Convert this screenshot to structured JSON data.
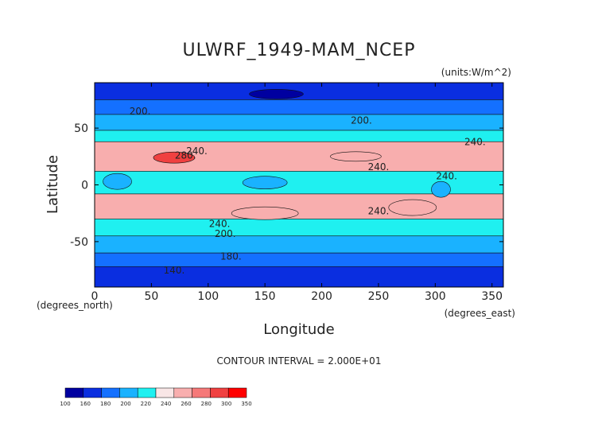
{
  "chart_data": {
    "type": "heatmap",
    "title": "ULWRF_1949-MAM_NCEP",
    "units": "(units:W/m^2)",
    "xlabel": "Longitude",
    "ylabel": "Latitude",
    "x_unit_note": "(degrees_east)",
    "y_unit_note": "(degrees_north)",
    "xlim": [
      0,
      360
    ],
    "ylim": [
      -90,
      90
    ],
    "x_ticks": [
      "0",
      "50",
      "100",
      "150",
      "200",
      "250",
      "300",
      "350"
    ],
    "y_ticks": [
      "50",
      "0",
      "-50"
    ],
    "contour_interval_text": "CONTOUR INTERVAL = 2.000E+01",
    "contour_labels": [
      "200.",
      "200.",
      "280.",
      "240.",
      "240.",
      "240.",
      "240.",
      "240.",
      "240.",
      "200.",
      "180.",
      "140."
    ],
    "latitude_bands": [
      {
        "lat_from": 90,
        "lat_to": 75,
        "value": 170
      },
      {
        "lat_from": 75,
        "lat_to": 62,
        "value": 190
      },
      {
        "lat_from": 62,
        "lat_to": 48,
        "value": 210
      },
      {
        "lat_from": 48,
        "lat_to": 38,
        "value": 230
      },
      {
        "lat_from": 38,
        "lat_to": 12,
        "value": 265
      },
      {
        "lat_from": 12,
        "lat_to": -8,
        "value": 235
      },
      {
        "lat_from": -8,
        "lat_to": -30,
        "value": 265
      },
      {
        "lat_from": -30,
        "lat_to": -45,
        "value": 230
      },
      {
        "lat_from": -45,
        "lat_to": -60,
        "value": 210
      },
      {
        "lat_from": -60,
        "lat_to": -72,
        "value": 190
      },
      {
        "lat_from": -72,
        "lat_to": -90,
        "value": 170
      }
    ],
    "features": [
      {
        "lon": 70,
        "lat": 24,
        "value": 305
      },
      {
        "lon": 20,
        "lat": 3,
        "value": 215
      },
      {
        "lon": 150,
        "lat": 2,
        "value": 215
      },
      {
        "lon": 305,
        "lat": -4,
        "value": 215
      },
      {
        "lon": 230,
        "lat": 25,
        "value": 265
      },
      {
        "lon": 150,
        "lat": -25,
        "value": 275
      },
      {
        "lon": 280,
        "lat": -20,
        "value": 275
      },
      {
        "lon": 160,
        "lat": 80,
        "value": 150
      }
    ],
    "colorbar": {
      "ticks": [
        "100",
        "160",
        "180",
        "200",
        "220",
        "240",
        "260",
        "280",
        "300",
        "350"
      ],
      "colors": [
        "#0000a0",
        "#0a2ee0",
        "#1470ff",
        "#1ab2ff",
        "#1ff0f0",
        "#f8e6e6",
        "#f8aeae",
        "#f57878",
        "#f04040",
        "#ff0000"
      ]
    }
  }
}
